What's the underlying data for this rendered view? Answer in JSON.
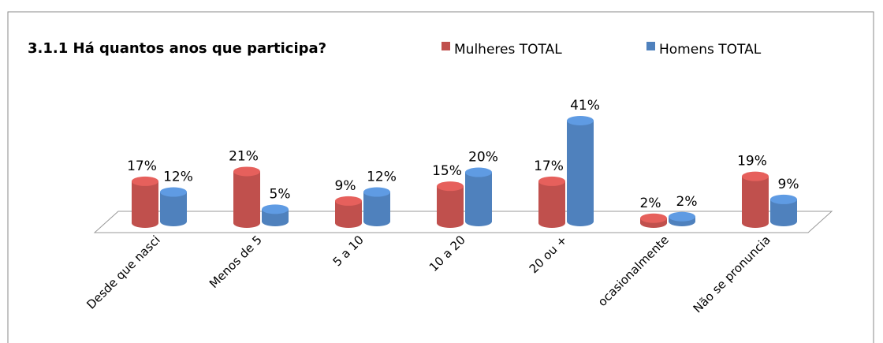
{
  "chart_data": {
    "type": "bar3d",
    "title": "3.1.1 Há quantos anos que participa?",
    "categories": [
      "Desde que nasci",
      "Menos de 5",
      "5 a 10",
      "10 a 20",
      "20 ou +",
      "ocasionalmente",
      "Não se pronuncia"
    ],
    "series": [
      {
        "name": "Mulheres TOTAL",
        "color": "#c0504d",
        "values": [
          17,
          21,
          9,
          15,
          17,
          2,
          19
        ],
        "value_labels": [
          "17%",
          "21%",
          "9%",
          "15%",
          "17%",
          "2%",
          "19%"
        ]
      },
      {
        "name": "Homens TOTAL",
        "color": "#4f81bd",
        "values": [
          12,
          5,
          12,
          20,
          41,
          2,
          9
        ],
        "value_labels": [
          "12%",
          "5%",
          "12%",
          "20%",
          "41%",
          "2%",
          "9%"
        ]
      }
    ],
    "ylim": [
      0,
      41
    ],
    "legend": "top-right"
  }
}
